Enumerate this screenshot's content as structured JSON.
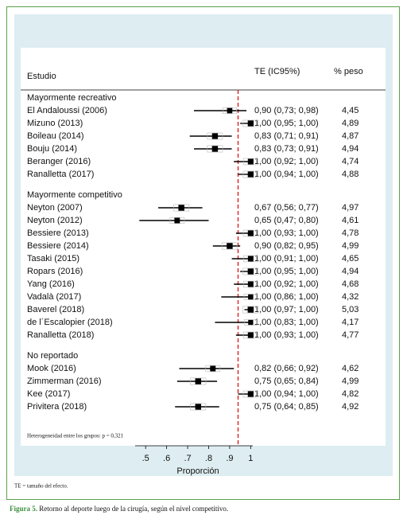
{
  "chart_data": {
    "type": "forest",
    "column_headers": {
      "study": "Estudio",
      "effect": "TE (IC95%)",
      "weight": "% peso"
    },
    "xlabel": "Proporción",
    "xlim": [
      0.45,
      1.01
    ],
    "xticks": [
      {
        "value": 0.5,
        "label": ".5"
      },
      {
        "value": 0.6,
        "label": ".6"
      },
      {
        "value": 0.7,
        "label": ".7"
      },
      {
        "value": 0.8,
        "label": ".8"
      },
      {
        "value": 0.9,
        "label": ".9"
      },
      1
    ],
    "reference_line": 0.94,
    "reference_color": "#e0201c",
    "marker_color": "#000000",
    "groups": [
      {
        "label": "Mayormente recreativo",
        "studies": [
          {
            "name": "El Andaloussi (2006)",
            "estimate": 0.9,
            "lower": 0.73,
            "upper": 0.98,
            "te_label": "0,90 (0,73; 0,98)",
            "weight": 4.45,
            "weight_label": "4,45"
          },
          {
            "name": "Mizuno (2013)",
            "estimate": 1.0,
            "lower": 0.95,
            "upper": 1.0,
            "te_label": "1,00 (0,95; 1,00)",
            "weight": 4.89,
            "weight_label": "4,89"
          },
          {
            "name": "Boileau (2014)",
            "estimate": 0.83,
            "lower": 0.71,
            "upper": 0.91,
            "te_label": "0,83 (0,71; 0,91)",
            "weight": 4.87,
            "weight_label": "4,87"
          },
          {
            "name": "Bouju (2014)",
            "estimate": 0.83,
            "lower": 0.73,
            "upper": 0.91,
            "te_label": "0,83 (0,73; 0,91)",
            "weight": 4.94,
            "weight_label": "4,94"
          },
          {
            "name": "Beranger (2016)",
            "estimate": 1.0,
            "lower": 0.92,
            "upper": 1.0,
            "te_label": "1,00 (0,92; 1,00)",
            "weight": 4.74,
            "weight_label": "4,74"
          },
          {
            "name": "Ranalletta (2017)",
            "estimate": 1.0,
            "lower": 0.94,
            "upper": 1.0,
            "te_label": "1,00 (0,94; 1,00)",
            "weight": 4.88,
            "weight_label": "4,88"
          }
        ]
      },
      {
        "label": "Mayormente competitivo",
        "studies": [
          {
            "name": "Neyton (2007)",
            "estimate": 0.67,
            "lower": 0.56,
            "upper": 0.77,
            "te_label": "0,67 (0,56; 0,77)",
            "weight": 4.97,
            "weight_label": "4,97"
          },
          {
            "name": "Neyton (2012)",
            "estimate": 0.65,
            "lower": 0.47,
            "upper": 0.8,
            "te_label": "0,65 (0,47; 0,80)",
            "weight": 4.61,
            "weight_label": "4,61"
          },
          {
            "name": "Bessiere (2013)",
            "estimate": 1.0,
            "lower": 0.93,
            "upper": 1.0,
            "te_label": "1,00 (0,93; 1,00)",
            "weight": 4.78,
            "weight_label": "4,78"
          },
          {
            "name": "Bessiere (2014)",
            "estimate": 0.9,
            "lower": 0.82,
            "upper": 0.95,
            "te_label": "0,90 (0,82; 0,95)",
            "weight": 4.99,
            "weight_label": "4,99"
          },
          {
            "name": "Tasaki  (2015)",
            "estimate": 1.0,
            "lower": 0.91,
            "upper": 1.0,
            "te_label": "1,00 (0,91; 1,00)",
            "weight": 4.65,
            "weight_label": "4,65"
          },
          {
            "name": "Ropars (2016)",
            "estimate": 1.0,
            "lower": 0.95,
            "upper": 1.0,
            "te_label": "1,00 (0,95; 1,00)",
            "weight": 4.94,
            "weight_label": "4,94"
          },
          {
            "name": "Yang (2016)",
            "estimate": 1.0,
            "lower": 0.92,
            "upper": 1.0,
            "te_label": "1,00 (0,92; 1,00)",
            "weight": 4.68,
            "weight_label": "4,68"
          },
          {
            "name": "Vadalà (2017)",
            "estimate": 1.0,
            "lower": 0.86,
            "upper": 1.0,
            "te_label": "1,00 (0,86; 1,00)",
            "weight": 4.32,
            "weight_label": "4,32"
          },
          {
            "name": "Baverel (2018)",
            "estimate": 1.0,
            "lower": 0.97,
            "upper": 1.0,
            "te_label": "1,00 (0,97; 1,00)",
            "weight": 5.03,
            "weight_label": "5,03"
          },
          {
            "name": "de l´Escalopier (2018)",
            "estimate": 1.0,
            "lower": 0.83,
            "upper": 1.0,
            "te_label": "1,00 (0,83; 1,00)",
            "weight": 4.17,
            "weight_label": "4,17"
          },
          {
            "name": "Ranalletta (2018)",
            "estimate": 1.0,
            "lower": 0.93,
            "upper": 1.0,
            "te_label": "1,00 (0,93; 1,00)",
            "weight": 4.77,
            "weight_label": "4,77"
          }
        ]
      },
      {
        "label": "No reportado",
        "studies": [
          {
            "name": "Mook (2016)",
            "estimate": 0.82,
            "lower": 0.66,
            "upper": 0.92,
            "te_label": "0,82 (0,66; 0,92)",
            "weight": 4.62,
            "weight_label": "4,62"
          },
          {
            "name": "Zimmerman (2016)",
            "estimate": 0.75,
            "lower": 0.65,
            "upper": 0.84,
            "te_label": "0,75 (0,65; 0,84)",
            "weight": 4.99,
            "weight_label": "4,99"
          },
          {
            "name": "Kee (2017)",
            "estimate": 1.0,
            "lower": 0.94,
            "upper": 1.0,
            "te_label": "1,00 (0,94; 1,00)",
            "weight": 4.82,
            "weight_label": "4,82"
          },
          {
            "name": "Privitera (2018)",
            "estimate": 0.75,
            "lower": 0.64,
            "upper": 0.85,
            "te_label": "0,75 (0,64; 0,85)",
            "weight": 4.92,
            "weight_label": "4,92"
          }
        ]
      }
    ],
    "heterogeneity_note": "Heterogeneidad entre los grupos: p = 0,321",
    "footnote": "TE = tamaño del efecto.",
    "caption": {
      "label": "Figura 5.",
      "text": "Retorno al deporte luego de la cirugía, según el nivel competitivo."
    }
  }
}
